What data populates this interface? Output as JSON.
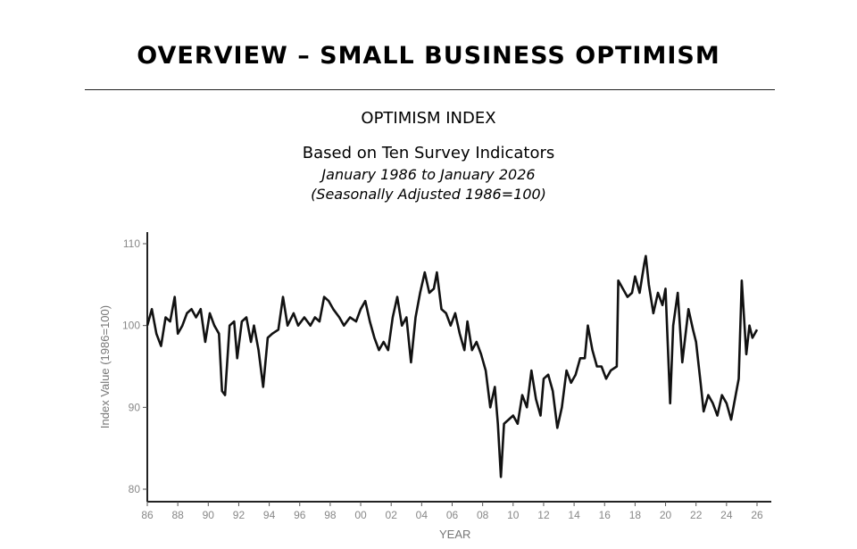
{
  "header": {
    "title": "OVERVIEW – SMALL BUSINESS OPTIMISM"
  },
  "chart_data": {
    "type": "line",
    "title": "OPTIMISM INDEX",
    "subtitle": "Based on Ten Survey Indicators",
    "date_range": "January 1986 to January 2026",
    "note": "(Seasonally Adjusted 1986=100)",
    "xlabel": "YEAR",
    "ylabel": "Index Value (1986=100)",
    "xlim": [
      1986,
      2026
    ],
    "ylim": [
      79,
      111
    ],
    "x_ticks": [
      "86",
      "88",
      "90",
      "92",
      "94",
      "96",
      "98",
      "00",
      "02",
      "04",
      "06",
      "08",
      "10",
      "12",
      "14",
      "16",
      "18",
      "20",
      "22",
      "24",
      "26"
    ],
    "y_ticks": [
      80,
      90,
      100,
      110
    ],
    "grid": false,
    "line_color": "#111111",
    "points": [
      [
        1986.0,
        100
      ],
      [
        1986.3,
        102
      ],
      [
        1986.6,
        99
      ],
      [
        1986.9,
        97.5
      ],
      [
        1987.2,
        101
      ],
      [
        1987.5,
        100.5
      ],
      [
        1987.8,
        103.5
      ],
      [
        1988.0,
        99
      ],
      [
        1988.3,
        100
      ],
      [
        1988.6,
        101.5
      ],
      [
        1988.9,
        102
      ],
      [
        1989.2,
        101
      ],
      [
        1989.5,
        102
      ],
      [
        1989.8,
        98
      ],
      [
        1990.1,
        101.5
      ],
      [
        1990.4,
        100
      ],
      [
        1990.7,
        99
      ],
      [
        1990.9,
        92
      ],
      [
        1991.1,
        91.5
      ],
      [
        1991.4,
        100
      ],
      [
        1991.7,
        100.5
      ],
      [
        1991.9,
        96
      ],
      [
        1992.2,
        100.5
      ],
      [
        1992.5,
        101
      ],
      [
        1992.8,
        98
      ],
      [
        1993.0,
        100
      ],
      [
        1993.3,
        97
      ],
      [
        1993.6,
        92.5
      ],
      [
        1993.9,
        98.5
      ],
      [
        1994.2,
        99
      ],
      [
        1994.6,
        99.5
      ],
      [
        1994.9,
        103.5
      ],
      [
        1995.2,
        100
      ],
      [
        1995.6,
        101.5
      ],
      [
        1995.9,
        100
      ],
      [
        1996.3,
        101
      ],
      [
        1996.7,
        100
      ],
      [
        1997.0,
        101
      ],
      [
        1997.3,
        100.5
      ],
      [
        1997.6,
        103.5
      ],
      [
        1997.9,
        103
      ],
      [
        1998.2,
        102
      ],
      [
        1998.6,
        101
      ],
      [
        1998.9,
        100
      ],
      [
        1999.3,
        101
      ],
      [
        1999.7,
        100.5
      ],
      [
        2000.0,
        102
      ],
      [
        2000.3,
        103
      ],
      [
        2000.6,
        100.5
      ],
      [
        2000.9,
        98.5
      ],
      [
        2001.2,
        97
      ],
      [
        2001.5,
        98
      ],
      [
        2001.8,
        97
      ],
      [
        2002.1,
        101
      ],
      [
        2002.4,
        103.5
      ],
      [
        2002.7,
        100
      ],
      [
        2003.0,
        101
      ],
      [
        2003.3,
        95.5
      ],
      [
        2003.6,
        101
      ],
      [
        2003.9,
        104
      ],
      [
        2004.2,
        106.5
      ],
      [
        2004.5,
        104
      ],
      [
        2004.8,
        104.5
      ],
      [
        2005.0,
        106.5
      ],
      [
        2005.3,
        102
      ],
      [
        2005.6,
        101.5
      ],
      [
        2005.9,
        100
      ],
      [
        2006.2,
        101.5
      ],
      [
        2006.5,
        99
      ],
      [
        2006.8,
        97
      ],
      [
        2007.0,
        100.5
      ],
      [
        2007.3,
        97
      ],
      [
        2007.6,
        98
      ],
      [
        2007.9,
        96.5
      ],
      [
        2008.2,
        94.5
      ],
      [
        2008.5,
        90
      ],
      [
        2008.8,
        92.5
      ],
      [
        2009.0,
        88
      ],
      [
        2009.2,
        81.5
      ],
      [
        2009.4,
        88
      ],
      [
        2009.7,
        88.5
      ],
      [
        2010.0,
        89
      ],
      [
        2010.3,
        88
      ],
      [
        2010.6,
        91.5
      ],
      [
        2010.9,
        90
      ],
      [
        2011.2,
        94.5
      ],
      [
        2011.5,
        91
      ],
      [
        2011.8,
        89
      ],
      [
        2012.0,
        93.5
      ],
      [
        2012.3,
        94
      ],
      [
        2012.6,
        92
      ],
      [
        2012.9,
        87.5
      ],
      [
        2013.2,
        90
      ],
      [
        2013.5,
        94.5
      ],
      [
        2013.8,
        93
      ],
      [
        2014.1,
        94
      ],
      [
        2014.4,
        96
      ],
      [
        2014.7,
        96
      ],
      [
        2014.9,
        100
      ],
      [
        2015.2,
        97
      ],
      [
        2015.5,
        95
      ],
      [
        2015.8,
        95
      ],
      [
        2016.1,
        93.5
      ],
      [
        2016.4,
        94.5
      ],
      [
        2016.8,
        95
      ],
      [
        2016.9,
        105.5
      ],
      [
        2017.2,
        104.5
      ],
      [
        2017.5,
        103.5
      ],
      [
        2017.8,
        104
      ],
      [
        2018.0,
        106
      ],
      [
        2018.3,
        104
      ],
      [
        2018.6,
        107.5
      ],
      [
        2018.7,
        108.5
      ],
      [
        2018.9,
        105
      ],
      [
        2019.2,
        101.5
      ],
      [
        2019.5,
        104
      ],
      [
        2019.8,
        102.5
      ],
      [
        2020.0,
        104.5
      ],
      [
        2020.3,
        90.5
      ],
      [
        2020.5,
        100
      ],
      [
        2020.8,
        104
      ],
      [
        2021.1,
        95.5
      ],
      [
        2021.5,
        102
      ],
      [
        2021.8,
        99.5
      ],
      [
        2022.0,
        98
      ],
      [
        2022.3,
        93
      ],
      [
        2022.5,
        89.5
      ],
      [
        2022.8,
        91.5
      ],
      [
        2023.1,
        90.5
      ],
      [
        2023.4,
        89
      ],
      [
        2023.7,
        91.5
      ],
      [
        2024.0,
        90.5
      ],
      [
        2024.3,
        88.5
      ],
      [
        2024.6,
        91.5
      ],
      [
        2024.8,
        93.5
      ],
      [
        2025.0,
        105.5
      ],
      [
        2025.3,
        96.5
      ],
      [
        2025.5,
        100
      ],
      [
        2025.7,
        98.5
      ],
      [
        2026.0,
        99.5
      ]
    ]
  }
}
